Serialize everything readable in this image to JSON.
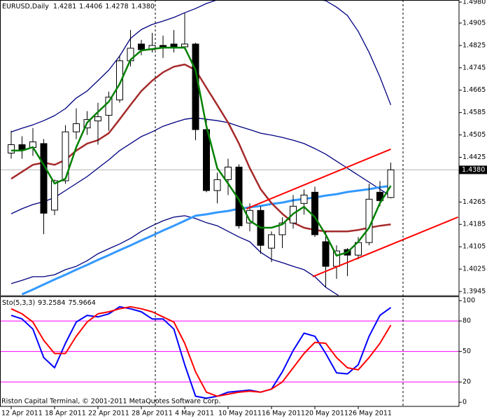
{
  "chart_data": [
    {
      "type": "candlestick",
      "title": "EURUSD,Daily",
      "ohlc_labels": [
        "1.4281",
        "1.4406",
        "1.4278",
        "1.4380"
      ],
      "categories": [
        "12 Apr 2011",
        null,
        null,
        null,
        "18 Apr 2011",
        null,
        null,
        null,
        "22 Apr 2011",
        null,
        null,
        null,
        "28 Apr 2011",
        null,
        null,
        null,
        "4 May 2011",
        null,
        null,
        null,
        "10 May 2011",
        null,
        null,
        null,
        "16 May 2011",
        null,
        null,
        null,
        "20 May 2011",
        null,
        null,
        null,
        "26 May 2011",
        null,
        null,
        null
      ],
      "open": [
        1.444,
        1.447,
        1.446,
        1.4474,
        1.4236,
        1.4341,
        1.4516,
        1.453,
        1.4555,
        1.4575,
        1.463,
        1.477,
        1.483,
        1.481,
        1.4825,
        1.483,
        1.482,
        1.483,
        1.4524,
        1.4306,
        1.4345,
        1.439,
        1.419,
        1.4235,
        1.41,
        1.4148,
        1.419,
        1.426,
        1.43,
        1.4123,
        1.4035,
        1.4095,
        1.4075,
        1.412,
        1.43,
        1.4281
      ],
      "high": [
        1.452,
        1.45,
        1.453,
        1.449,
        1.4345,
        1.454,
        1.46,
        1.459,
        1.462,
        1.466,
        1.479,
        1.488,
        1.4845,
        1.487,
        1.486,
        1.488,
        1.494,
        1.4835,
        1.456,
        1.437,
        1.442,
        1.44,
        1.426,
        1.425,
        1.416,
        1.421,
        1.429,
        1.431,
        1.432,
        1.416,
        1.411,
        1.41,
        1.414,
        1.433,
        1.434,
        1.4406
      ],
      "low": [
        1.442,
        1.442,
        1.443,
        1.415,
        1.4218,
        1.433,
        1.449,
        1.4505,
        1.447,
        1.452,
        1.462,
        1.475,
        1.479,
        1.48,
        1.478,
        1.48,
        1.481,
        1.4486,
        1.43,
        1.426,
        1.429,
        1.417,
        1.416,
        1.408,
        1.405,
        1.41,
        1.417,
        1.422,
        1.414,
        1.396,
        1.399,
        1.4,
        1.406,
        1.411,
        1.425,
        1.4278
      ],
      "close": [
        1.447,
        1.445,
        1.448,
        1.4225,
        1.4341,
        1.4516,
        1.4545,
        1.456,
        1.457,
        1.464,
        1.477,
        1.4815,
        1.481,
        1.4825,
        1.482,
        1.482,
        1.483,
        1.4524,
        1.4306,
        1.4345,
        1.439,
        1.418,
        1.4235,
        1.411,
        1.4148,
        1.419,
        1.425,
        1.429,
        1.4148,
        1.4035,
        1.409,
        1.4075,
        1.412,
        1.4275,
        1.427,
        1.438
      ],
      "up_color": "#ffffff",
      "down_color": "#000000",
      "price_line_color": "#b4b4b4",
      "overlays": [
        {
          "color": "#000080",
          "width": 1.3,
          "values": [
            1.4516,
            1.4529,
            1.4541,
            1.4556,
            1.4574,
            1.4599,
            1.4637,
            1.4662,
            1.4699,
            1.4737,
            1.4787,
            1.485,
            1.4882,
            1.49,
            1.4912,
            1.4925,
            1.4942,
            1.4957,
            1.4975,
            1.4988,
            1.5,
            1.501,
            1.5015,
            1.5015,
            1.501,
            1.5005,
            1.5,
            1.4995,
            1.499,
            1.4985,
            1.4962,
            1.4932,
            1.4875,
            1.48,
            1.4712,
            1.4612
          ]
        },
        {
          "color": "#000080",
          "width": 1.3,
          "values": [
            1.4223,
            1.4241,
            1.4256,
            1.4266,
            1.4281,
            1.4306,
            1.4331,
            1.4356,
            1.4386,
            1.4416,
            1.4449,
            1.4474,
            1.4499,
            1.4516,
            1.4536,
            1.4549,
            1.4561,
            1.4566,
            1.4561,
            1.4556,
            1.4549,
            1.4536,
            1.4524,
            1.4511,
            1.4504,
            1.4496,
            1.4486,
            1.4474,
            1.4456,
            1.4436,
            1.4411,
            1.4386,
            1.4361,
            1.4336,
            1.4311,
            1.4286
          ]
        },
        {
          "color": "#000080",
          "width": 1.3,
          "values": [
            1.3973,
            1.3985,
            1.3998,
            1.3998,
            1.4005,
            1.4023,
            1.4035,
            1.4055,
            1.408,
            1.4098,
            1.4115,
            1.4135,
            1.416,
            1.418,
            1.4198,
            1.4211,
            1.4216,
            1.4206,
            1.4191,
            1.418,
            1.416,
            1.414,
            1.4123,
            1.4085,
            1.406,
            1.4048,
            1.4035,
            1.4023,
            1.3998,
            1.396,
            1.3935,
            1.391,
            1.3872,
            1.3872,
            1.3885,
            1.391
          ]
        },
        {
          "color": "#3399ff",
          "width": 3,
          "values": [
            null,
            1.3935,
            1.3952,
            1.397,
            1.3988,
            1.4005,
            1.4023,
            1.404,
            1.4058,
            1.4075,
            1.4093,
            1.411,
            1.4128,
            1.4145,
            1.4163,
            1.418,
            1.4198,
            1.4216,
            1.4221,
            1.4228,
            1.4233,
            1.4241,
            1.4246,
            1.4251,
            1.4258,
            1.4263,
            1.4271,
            1.4276,
            1.4281,
            1.4288,
            1.4293,
            1.4301,
            1.4306,
            1.4311,
            1.4318,
            1.4323
          ]
        },
        {
          "color": "#a52a2a",
          "width": 2.5,
          "values": [
            1.4348,
            1.4373,
            1.4398,
            1.4406,
            1.4398,
            1.4416,
            1.4449,
            1.4474,
            1.4486,
            1.4511,
            1.4561,
            1.4612,
            1.4662,
            1.4699,
            1.4729,
            1.4749,
            1.4757,
            1.4737,
            1.4674,
            1.4612,
            1.4549,
            1.4474,
            1.4386,
            1.4311,
            1.4261,
            1.4223,
            1.4191,
            1.4173,
            1.4165,
            1.416,
            1.416,
            1.416,
            1.4165,
            1.4173,
            1.418,
            1.4185
          ]
        },
        {
          "color": "#008000",
          "width": 2.5,
          "values": [
            1.4449,
            1.4449,
            1.4461,
            1.4398,
            1.4331,
            1.4348,
            1.4461,
            1.4549,
            1.4587,
            1.4624,
            1.4687,
            1.4774,
            1.4807,
            1.4812,
            1.4817,
            1.4817,
            1.4817,
            1.4737,
            1.4536,
            1.4386,
            1.4331,
            1.4273,
            1.4198,
            1.4173,
            1.4173,
            1.4185,
            1.4223,
            1.4248,
            1.4211,
            1.4148,
            1.4073,
            1.4085,
            1.4123,
            1.4173,
            1.4261,
            1.4323
          ]
        }
      ],
      "trendlines": [
        {
          "color": "#ff0000",
          "x": [
            21.7,
            35
          ],
          "y": [
            1.4241,
            1.4454
          ]
        },
        {
          "color": "#ff0000",
          "x": [
            27.8,
            41.2
          ],
          "y": [
            1.3998,
            1.4211
          ]
        }
      ],
      "ylim": [
        1.393,
        1.49875
      ],
      "yticks": [
        {
          "value": 1.498,
          "label": "1.4980"
        },
        {
          "value": 1.4905,
          "label": "1.4905"
        },
        {
          "value": 1.4825,
          "label": "1.4825"
        },
        {
          "value": 1.4745,
          "label": "1.4745"
        },
        {
          "value": 1.4665,
          "label": "1.4665"
        },
        {
          "value": 1.4585,
          "label": "1.4585"
        },
        {
          "value": 1.4505,
          "label": "1.4505"
        },
        {
          "value": 1.4425,
          "label": "1.4425"
        },
        {
          "value": 1.4265,
          "label": "1.4265"
        },
        {
          "value": 1.4185,
          "label": "1.4185"
        },
        {
          "value": 1.4105,
          "label": "1.4105"
        },
        {
          "value": 1.4025,
          "label": "1.4025"
        },
        {
          "value": 1.3945,
          "label": "1.3945"
        }
      ]
    },
    {
      "type": "line",
      "title": "Sto(5,3,3)",
      "series": [
        {
          "color": "#0000ff",
          "values": [
            85.5,
            82,
            72,
            44,
            34,
            58,
            79,
            85.5,
            84,
            87,
            94,
            92,
            89,
            82,
            82,
            72,
            37,
            6,
            4,
            6,
            10,
            11,
            12,
            10,
            13,
            30,
            51,
            68,
            65,
            48,
            29,
            28,
            37,
            65,
            85.5,
            93.2584
          ]
        },
        {
          "color": "#ff0000",
          "values": [
            92,
            87,
            79,
            61,
            48,
            48,
            65,
            79,
            87,
            89,
            92,
            94,
            92,
            89,
            84,
            79,
            58,
            30,
            10,
            6,
            8,
            10,
            11,
            10,
            13,
            20,
            34,
            48,
            59,
            58,
            44,
            34,
            32,
            44,
            58,
            75.9664
          ]
        }
      ],
      "levels": [
        80,
        50,
        20
      ],
      "level_color": "#ff00ff",
      "ylim": [
        -4,
        103.5
      ],
      "yticks": [
        100,
        80,
        50,
        20,
        0
      ]
    }
  ],
  "footer": "Riston Capital Terminal, © 2001-2011 MetaQuotes Software Corp."
}
